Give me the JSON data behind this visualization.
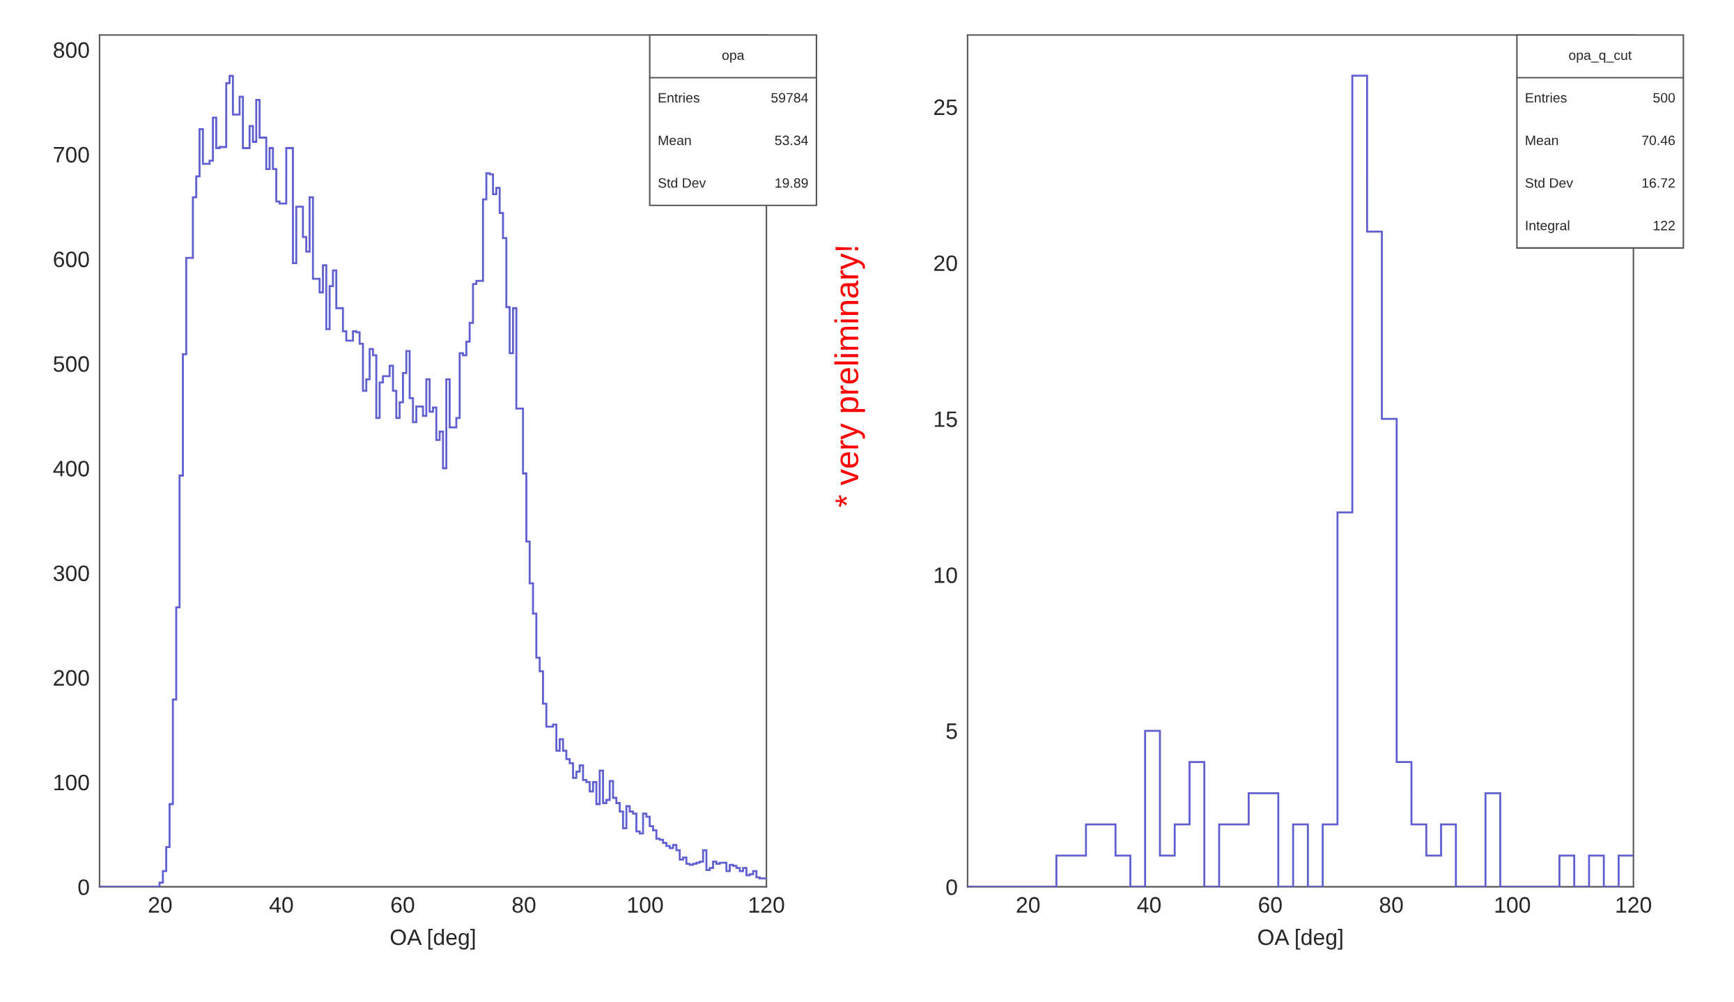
{
  "chart_data": [
    {
      "type": "histogram",
      "xlabel": "OA [deg]",
      "color": "#5f5fd2",
      "bins": [
        10,
        10.55,
        11.1,
        11.65,
        12.2,
        12.75,
        13.3,
        13.85,
        14.4,
        14.95,
        15.5,
        16.05,
        16.6,
        17.15,
        17.7,
        18.25,
        18.8,
        19.35,
        19.9,
        20.45,
        21,
        21.55,
        22.1,
        22.65,
        23.2,
        23.75,
        24.3,
        24.85,
        25.4,
        25.95,
        26.5,
        27.05,
        27.6,
        28.15,
        28.7,
        29.25,
        29.8,
        30.35,
        30.9,
        31.45,
        32,
        32.55,
        33.1,
        33.65,
        34.2,
        34.75,
        35.3,
        35.85,
        36.4,
        36.95,
        37.5,
        38.05,
        38.6,
        39.15,
        39.7,
        40.25,
        40.8,
        41.35,
        41.9,
        42.45,
        43,
        43.55,
        44.1,
        44.65,
        45.2,
        45.75,
        46.3,
        46.85,
        47.4,
        47.95,
        48.5,
        49.05,
        49.6,
        50.15,
        50.7,
        51.25,
        51.8,
        52.35,
        52.9,
        53.45,
        54,
        54.55,
        55.1,
        55.65,
        56.2,
        56.75,
        57.3,
        57.85,
        58.4,
        58.95,
        59.5,
        60.05,
        60.6,
        61.15,
        61.7,
        62.25,
        62.8,
        63.35,
        63.9,
        64.45,
        65,
        65.55,
        66.1,
        66.65,
        67.2,
        67.75,
        68.3,
        68.85,
        69.4,
        69.95,
        70.5,
        71.05,
        71.6,
        72.15,
        72.7,
        73.25,
        73.8,
        74.35,
        74.9,
        75.45,
        76,
        76.55,
        77.1,
        77.65,
        78.2,
        78.75,
        79.3,
        79.85,
        80.4,
        80.95,
        81.5,
        82.05,
        82.6,
        83.15,
        83.7,
        84.25,
        84.8,
        85.35,
        85.9,
        86.45,
        87,
        87.55,
        88.1,
        88.65,
        89.2,
        89.75,
        90.3,
        90.85,
        91.4,
        91.95,
        92.5,
        93.05,
        93.6,
        94.15,
        94.7,
        95.25,
        95.8,
        96.35,
        96.9,
        97.45,
        98,
        98.55,
        99.1,
        99.65,
        100.2,
        100.75,
        101.3,
        101.85,
        102.4,
        102.95,
        103.5,
        104.05,
        104.6,
        105.15,
        105.7,
        106.25,
        106.8,
        107.35,
        107.9,
        108.45,
        109,
        109.55,
        110.1,
        110.65,
        111.2,
        111.75,
        112.3,
        112.85,
        113.4,
        113.95,
        114.5,
        115.05,
        115.6,
        116.15,
        116.7,
        117.25,
        117.8,
        118.35,
        118.9,
        119.45,
        120
      ],
      "values": [
        0,
        0,
        0,
        0,
        0,
        0,
        0,
        0,
        0,
        0,
        0,
        0,
        0,
        0,
        0,
        0,
        0,
        0,
        4,
        15,
        38,
        79,
        179,
        267,
        393,
        509,
        601,
        601,
        659,
        679,
        724,
        691,
        691,
        694,
        735,
        706,
        707,
        707,
        768,
        775,
        738,
        738,
        755,
        706,
        706,
        727,
        712,
        752,
        716,
        716,
        686,
        706,
        686,
        655,
        653,
        653,
        706,
        706,
        596,
        650,
        650,
        621,
        607,
        659,
        581,
        581,
        568,
        594,
        533,
        574,
        589,
        553,
        553,
        531,
        522,
        522,
        531,
        530,
        519,
        474,
        485,
        514,
        508,
        448,
        482,
        488,
        488,
        498,
        474,
        448,
        463,
        491,
        512,
        467,
        444,
        459,
        459,
        450,
        485,
        454,
        458,
        427,
        435,
        400,
        485,
        439,
        439,
        448,
        510,
        508,
        521,
        539,
        576,
        579,
        579,
        657,
        682,
        681,
        662,
        668,
        644,
        620,
        554,
        510,
        553,
        457,
        457,
        395,
        330,
        290,
        261,
        219,
        206,
        175,
        153,
        153,
        155,
        130,
        141,
        130,
        122,
        118,
        104,
        110,
        116,
        102,
        100,
        91,
        100,
        79,
        111,
        80,
        83,
        101,
        85,
        80,
        72,
        56,
        77,
        72,
        70,
        53,
        51,
        70,
        67,
        58,
        54,
        46,
        45,
        42,
        39,
        37,
        40,
        35,
        26,
        28,
        22,
        21,
        22,
        23,
        24,
        35,
        16,
        18,
        24,
        22,
        23,
        23,
        15,
        21,
        20,
        18,
        15,
        18,
        11,
        12,
        15,
        9,
        8,
        8
      ],
      "xlim": [
        10,
        120
      ],
      "xticks": [
        20,
        40,
        60,
        80,
        100,
        120
      ],
      "ylim": [
        0,
        814
      ],
      "yticks": [
        0,
        100,
        200,
        300,
        400,
        500,
        600,
        700,
        800
      ],
      "annotations": [
        "opa",
        "Entries",
        "59784",
        "Mean",
        "53.34",
        "Std Dev",
        "19.89"
      ]
    },
    {
      "type": "other",
      "color": "#ff0000",
      "annotations": [
        "* very preliminary!"
      ]
    },
    {
      "type": "histogram",
      "xlabel": "OA [deg]",
      "color": "#5f5fd2",
      "bins": [
        10,
        12.44,
        14.89,
        17.33,
        19.78,
        22.22,
        24.67,
        27.11,
        29.56,
        32,
        34.44,
        36.89,
        39.33,
        41.78,
        44.22,
        46.67,
        49.11,
        51.56,
        54,
        56.44,
        58.89,
        61.33,
        63.78,
        66.22,
        68.67,
        71.11,
        73.56,
        76,
        78.44,
        80.89,
        83.33,
        85.78,
        88.22,
        90.67,
        93.11,
        95.56,
        98,
        100.44,
        102.89,
        105.33,
        107.78,
        110.22,
        112.67,
        115.11,
        117.56,
        120
      ],
      "values": [
        0,
        0,
        0,
        0,
        0,
        0,
        1,
        1,
        2,
        2,
        1,
        0,
        5,
        1,
        2,
        4,
        0,
        2,
        2,
        3,
        3,
        0,
        2,
        0,
        2,
        12,
        26,
        21,
        15,
        4,
        2,
        1,
        2,
        0,
        0,
        3,
        0,
        0,
        0,
        0,
        1,
        0,
        1,
        0,
        1
      ],
      "xlim": [
        10,
        120
      ],
      "xticks": [
        20,
        40,
        60,
        80,
        100,
        120
      ],
      "ylim": [
        0,
        27.3
      ],
      "yticks": [
        0,
        5,
        10,
        15,
        20,
        25
      ],
      "annotations": [
        "opa_q_cut",
        "Entries",
        "500",
        "Mean",
        "70.46",
        "Std Dev",
        "16.72",
        "Integral",
        "122"
      ]
    }
  ]
}
